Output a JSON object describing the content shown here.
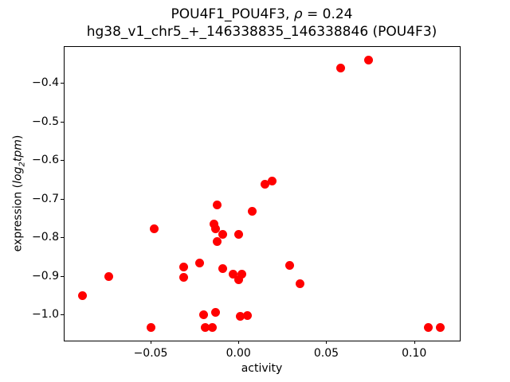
{
  "title": {
    "line1_prefix": "POU4F1_POU4F3, ",
    "line1_rho": "ρ",
    "line1_suffix": " = 0.24",
    "line2": "hg38_v1_chr5_+_146338835_146338846 (POU4F3)"
  },
  "axes": {
    "xlabel": "activity",
    "ylabel_prefix": "expression (",
    "ylabel_log": "log",
    "ylabel_sub": "2",
    "ylabel_tpm": "tpm",
    "ylabel_suffix": ")"
  },
  "chart_data": {
    "type": "scatter",
    "title": "POU4F1_POU4F3, ρ = 0.24",
    "subtitle": "hg38_v1_chr5_+_146338835_146338846 (POU4F3)",
    "xlabel": "activity",
    "ylabel": "expression (log2 tpm)",
    "marker": "circle",
    "marker_color": "#ff0000",
    "marker_diameter_px": 11,
    "grid": false,
    "legend": false,
    "xlim": [
      -0.099,
      0.126
    ],
    "ylim": [
      -1.067,
      -0.307
    ],
    "xticks": [
      {
        "v": -0.05,
        "label": "−0.05"
      },
      {
        "v": 0.0,
        "label": "0.00"
      },
      {
        "v": 0.05,
        "label": "0.05"
      },
      {
        "v": 0.1,
        "label": "0.10"
      }
    ],
    "yticks": [
      {
        "v": -0.4,
        "label": "−0.4"
      },
      {
        "v": -0.5,
        "label": "−0.5"
      },
      {
        "v": -0.6,
        "label": "−0.6"
      },
      {
        "v": -0.7,
        "label": "−0.7"
      },
      {
        "v": -0.8,
        "label": "−0.8"
      },
      {
        "v": -0.9,
        "label": "−0.9"
      },
      {
        "v": -1.0,
        "label": "−1.0"
      }
    ],
    "points": [
      [
        0.074,
        -0.34
      ],
      [
        0.058,
        -0.362
      ],
      [
        0.019,
        -0.654
      ],
      [
        0.015,
        -0.663
      ],
      [
        -0.012,
        -0.715
      ],
      [
        0.008,
        -0.733
      ],
      [
        -0.048,
        -0.778
      ],
      [
        -0.014,
        -0.766
      ],
      [
        -0.013,
        -0.778
      ],
      [
        -0.009,
        -0.793
      ],
      [
        0.0,
        -0.792
      ],
      [
        -0.012,
        -0.811
      ],
      [
        -0.022,
        -0.867
      ],
      [
        -0.031,
        -0.876
      ],
      [
        -0.031,
        -0.903
      ],
      [
        -0.009,
        -0.88
      ],
      [
        -0.003,
        -0.896
      ],
      [
        0.002,
        -0.894
      ],
      [
        0.0,
        -0.91
      ],
      [
        -0.074,
        -0.902
      ],
      [
        -0.089,
        -0.95
      ],
      [
        0.029,
        -0.872
      ],
      [
        0.035,
        -0.919
      ],
      [
        -0.02,
        -1.0
      ],
      [
        -0.013,
        -0.993
      ],
      [
        -0.019,
        -1.034
      ],
      [
        -0.015,
        -1.034
      ],
      [
        0.001,
        -1.004
      ],
      [
        0.005,
        -1.002
      ],
      [
        -0.05,
        -1.032
      ],
      [
        0.108,
        -1.032
      ],
      [
        0.115,
        -1.032
      ]
    ]
  }
}
